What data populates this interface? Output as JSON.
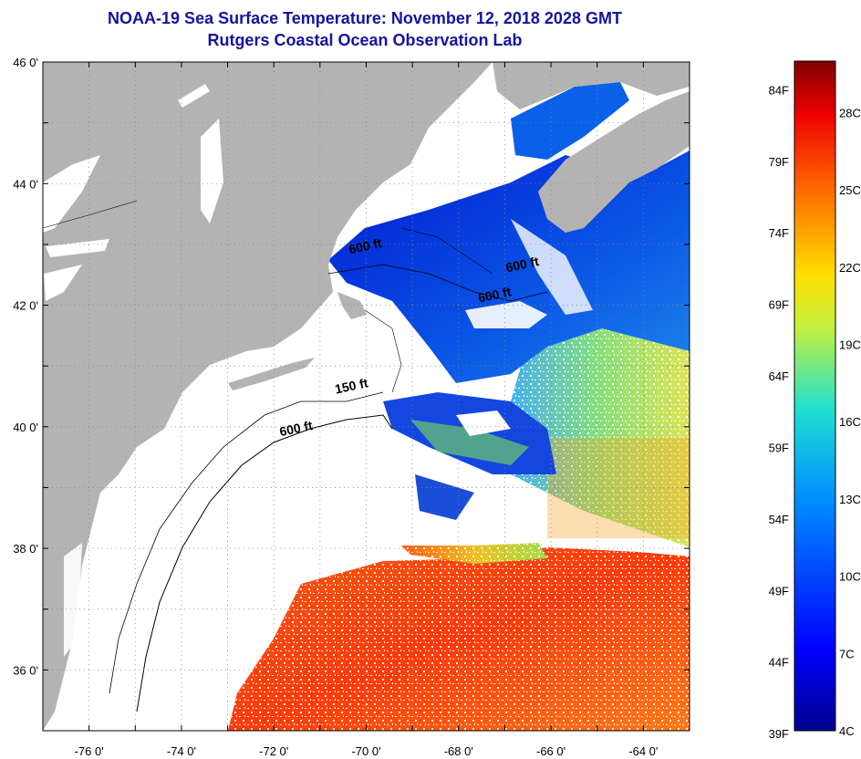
{
  "title_line1": "NOAA-19 Sea Surface Temperature:  November 12, 2018 2028 GMT",
  "title_line2": "Rutgers Coastal Ocean Observation Lab",
  "map": {
    "lon_range": [
      -77,
      -63
    ],
    "lat_range": [
      35,
      46
    ],
    "lon_ticks": [
      {
        "value": -76,
        "label": "-76 0'"
      },
      {
        "value": -74,
        "label": "-74 0'"
      },
      {
        "value": -72,
        "label": "-72 0'"
      },
      {
        "value": -70,
        "label": "-70 0'"
      },
      {
        "value": -68,
        "label": "-68 0'"
      },
      {
        "value": -66,
        "label": "-66 0'"
      },
      {
        "value": -64,
        "label": "-64 0'"
      }
    ],
    "lat_ticks": [
      {
        "value": 46,
        "label": "46 0'"
      },
      {
        "value": 44,
        "label": "44 0'"
      },
      {
        "value": 42,
        "label": "42 0'"
      },
      {
        "value": 40,
        "label": "40 0'"
      },
      {
        "value": 38,
        "label": "38 0'"
      },
      {
        "value": 36,
        "label": "36 0'"
      }
    ],
    "contour_labels": [
      {
        "text": "600 ft",
        "lon": -66.6,
        "lat": 42.6
      },
      {
        "text": "600 ft",
        "lon": -67.2,
        "lat": 42.1
      },
      {
        "text": "150 ft",
        "lon": -70.3,
        "lat": 40.6
      },
      {
        "text": "600 ft",
        "lon": -71.5,
        "lat": 39.9
      },
      {
        "text": "600 ft",
        "lon": -70.0,
        "lat": 42.9
      }
    ],
    "colors": {
      "land": "#b3b3b3",
      "cloud": "#ffffff",
      "grid": "#999999"
    }
  },
  "colorbar": {
    "temp_range_c": [
      4,
      30
    ],
    "fahrenheit_labels": [
      "84F",
      "79F",
      "74F",
      "69F",
      "64F",
      "59F",
      "54F",
      "49F",
      "44F",
      "39F"
    ],
    "celsius_labels": [
      "28C",
      "25C",
      "22C",
      "19C",
      "16C",
      "13C",
      "10C",
      "7C",
      "4C"
    ]
  }
}
